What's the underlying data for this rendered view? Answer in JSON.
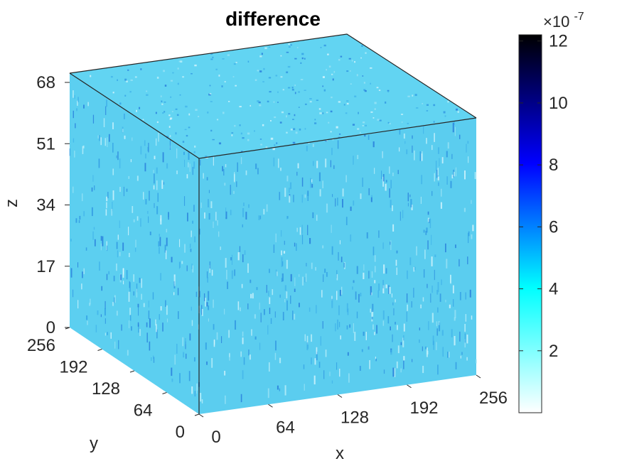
{
  "chart_data": {
    "type": "heatmap",
    "title": "difference",
    "xlabel": "x",
    "ylabel": "y",
    "zlabel": "z",
    "x_ticks": [
      "0",
      "64",
      "128",
      "192",
      "256"
    ],
    "y_ticks": [
      "0",
      "64",
      "128",
      "192",
      "256"
    ],
    "z_ticks": [
      "0",
      "17",
      "34",
      "51",
      "68"
    ],
    "xlim": [
      0,
      256
    ],
    "ylim": [
      0,
      256
    ],
    "zlim": [
      0,
      68
    ],
    "colorbar": {
      "exponent_label": "×10",
      "exponent": "-7",
      "ticks": [
        "2",
        "4",
        "6",
        "8",
        "10",
        "12"
      ],
      "tick_values": [
        2,
        4,
        6,
        8,
        10,
        12
      ],
      "range": [
        0,
        12.2
      ],
      "colormap": [
        "#ffffff",
        "#00ffff",
        "#0000ff",
        "#000000"
      ]
    },
    "dominant_value_range": [
      1.5,
      4.5
    ],
    "face_base_color": "#5fd3f2"
  }
}
